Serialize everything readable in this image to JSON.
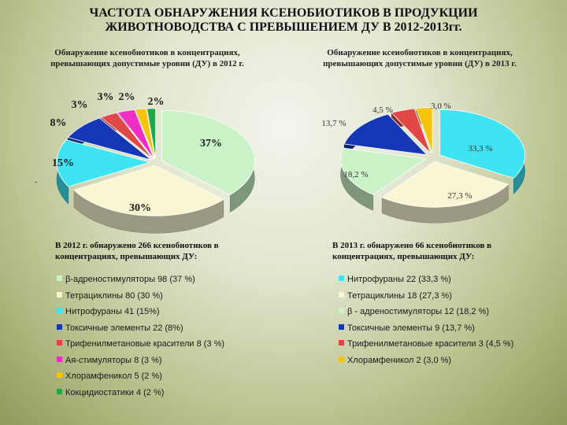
{
  "title_line1": "ЧАСТОТА ОБНАРУЖЕНИЯ КСЕНОБИОТИКОВ В ПРОДУКЦИИ",
  "title_line2": "ЖИВОТНОВОДСТВА С ПРЕВЫШЕНИЕМ ДУ В 2012-2013гг.",
  "left_dash": "-",
  "chart_data": [
    {
      "type": "pie",
      "title_line1": "Обнаружение ксенобиотиков в концентрациях,",
      "title_line2": "превышающих допустимые уровни (ДУ) в 2012 г.",
      "legend_header_line1": "В 2012 г. обнаружено 266 ксенобиотиков в",
      "legend_header_line2": "концентрациях, превышающих ДУ:",
      "slices": [
        {
          "legend": "β-адреностимуляторы 98 (37 %)",
          "value": 98,
          "label": "37%",
          "color": "#ccf2c8"
        },
        {
          "legend": "Тетрациклины 80 (30 %)",
          "value": 80,
          "label": "30%",
          "color": "#fbf6d2"
        },
        {
          "legend": "Нитрофураны 41 (15%)",
          "value": 41,
          "label": "15%",
          "color": "#3fe4f2"
        },
        {
          "legend": "Токсичные элементы 22 (8%)",
          "value": 22,
          "label": "8%",
          "color": "#1437b6"
        },
        {
          "legend": "Трифенилметановые красители 8 (3 %)",
          "value": 8,
          "label": "3%",
          "color": "#e04848"
        },
        {
          "legend": "Ая-стимуляторы 8 (3 %)",
          "value": 8,
          "label": "3%",
          "color": "#ef2fc3"
        },
        {
          "legend": "Хлорамфеникол 5 (2 %)",
          "value": 5,
          "label": "2%",
          "color": "#f6c20a"
        },
        {
          "legend": "Кокцидиостатики 4 (2 %)",
          "value": 4,
          "label": "2%",
          "color": "#22a84a"
        }
      ]
    },
    {
      "type": "pie",
      "title_line1": "Обнаружение ксенобиотиков в концентрациях,",
      "title_line2": "превышающих допустимые уровни (ДУ) в 2013 г.",
      "legend_header_line1": "В 2013 г. обнаружено 66 ксенобиотиков в",
      "legend_header_line2": "концентрациях, превышающих ДУ:",
      "slices": [
        {
          "legend": "Нитрофураны 22 (33,3 %)",
          "value": 22,
          "label": "33,3 %",
          "color": "#3fe4f2"
        },
        {
          "legend": "Тетрациклины 18 (27,3 %)",
          "value": 18,
          "label": "27,3 %",
          "color": "#fbf6d2"
        },
        {
          "legend": "β - адреностимуляторы 12 (18,2 %)",
          "value": 12,
          "label": "18,2 %",
          "color": "#ccf2c8"
        },
        {
          "legend": "Токсичные элементы 9 (13,7 %)",
          "value": 9,
          "label": "13,7 %",
          "color": "#1437b6"
        },
        {
          "legend": "Трифенилметановые красители 3 (4,5 %)",
          "value": 3,
          "label": "4,5 %",
          "color": "#e04848"
        },
        {
          "legend": "Хлорамфеникол 2 (3,0 %)",
          "value": 2,
          "label": "3,0 %",
          "color": "#f6c20a"
        }
      ]
    }
  ]
}
